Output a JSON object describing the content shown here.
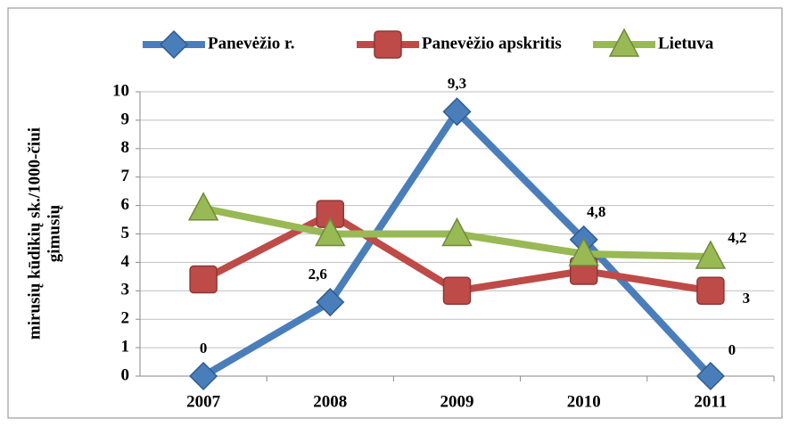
{
  "chart_data": {
    "type": "line",
    "y_label": [
      "mirusių kūdikių sk./1000-čiui",
      "gimusių"
    ],
    "categories": [
      "2007",
      "2008",
      "2009",
      "2010",
      "2011"
    ],
    "series": [
      {
        "name": "Panevėžio r.",
        "color": "#4a7ebb",
        "marker": "diamond",
        "values": [
          0,
          2.6,
          9.3,
          4.8,
          0
        ],
        "value_labels": [
          "0",
          "2,6",
          "9,3",
          "4,8",
          "0"
        ]
      },
      {
        "name": "Panevėžio apskritis",
        "color": "#be4b48",
        "marker": "square",
        "values": [
          3.4,
          5.7,
          3.0,
          3.7,
          3
        ],
        "value_labels": [
          null,
          null,
          null,
          null,
          "3"
        ]
      },
      {
        "name": "Lietuva",
        "color": "#98b954",
        "marker": "triangle",
        "values": [
          5.9,
          5.0,
          5.0,
          4.3,
          4.2
        ],
        "value_labels": [
          null,
          null,
          null,
          null,
          "4,2"
        ]
      }
    ],
    "ylim": [
      0,
      10
    ],
    "yticks": [
      0,
      1,
      2,
      3,
      4,
      5,
      6,
      7,
      8,
      9,
      10
    ],
    "grid": true,
    "legend": "top"
  }
}
